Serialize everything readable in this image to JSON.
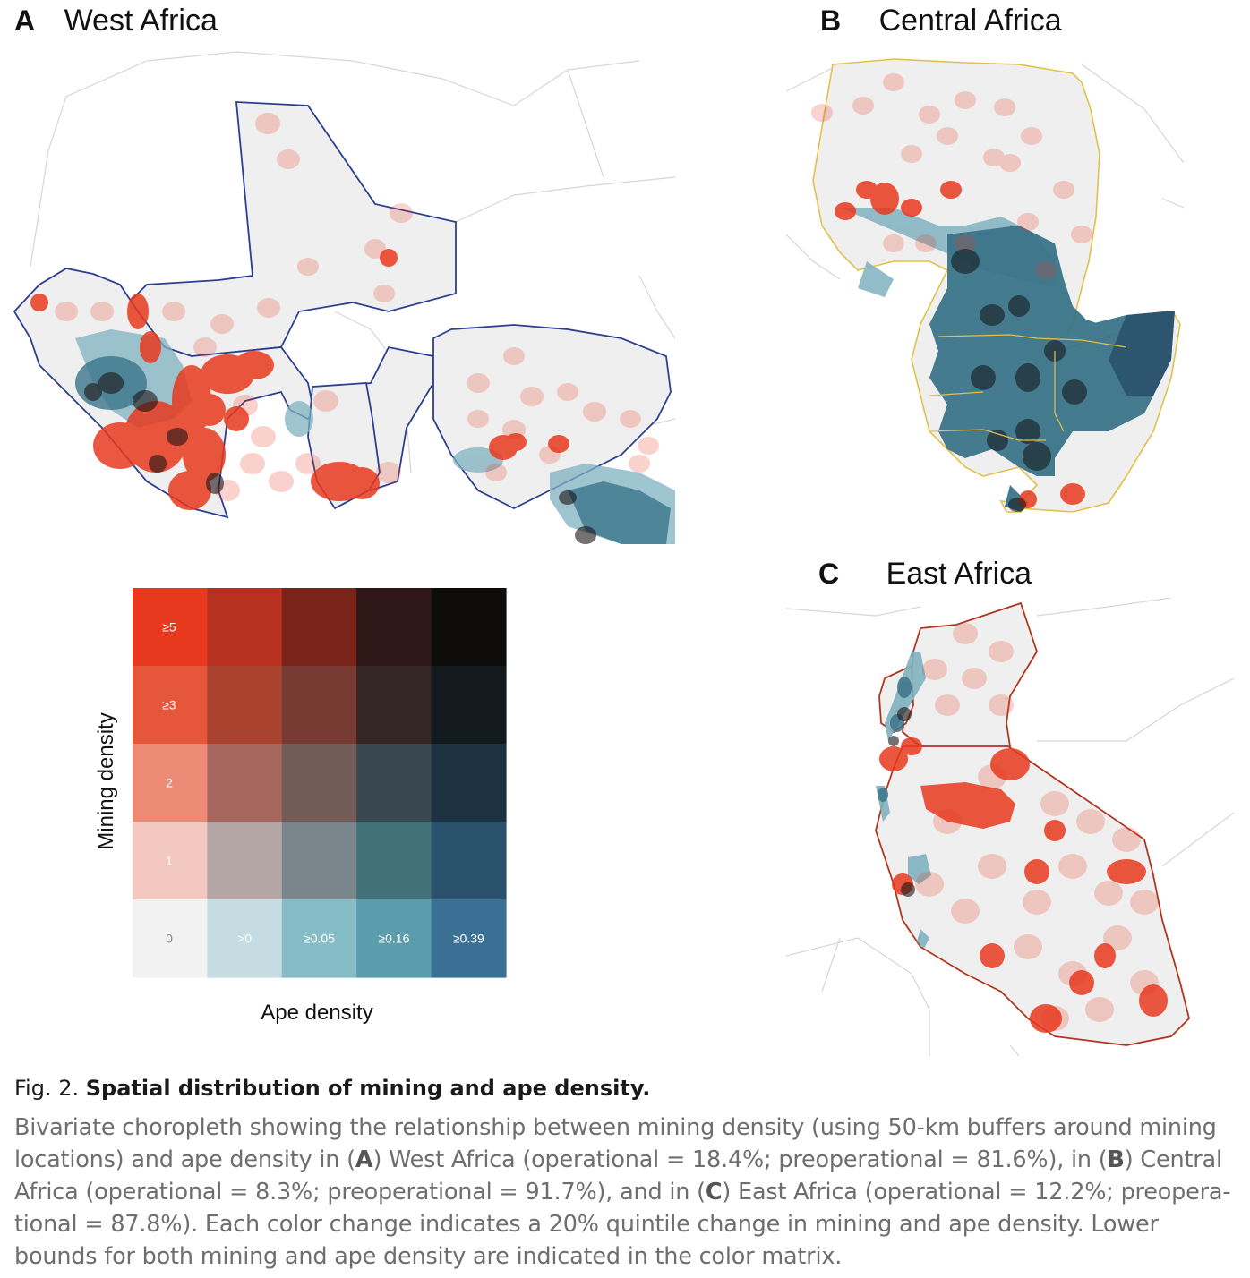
{
  "panels": {
    "a": {
      "letter": "A",
      "title": "West Africa"
    },
    "b": {
      "letter": "B",
      "title": "Central Africa"
    },
    "c": {
      "letter": "C",
      "title": "East Africa"
    }
  },
  "legend": {
    "y_title": "Mining density",
    "x_title": "Ape density",
    "mining_levels": [
      "≥5",
      "≥3",
      "2",
      "1",
      "0"
    ],
    "ape_levels": [
      ">0",
      "≥0.05",
      "≥0.16",
      "≥0.39"
    ],
    "colors": [
      [
        "#e8391f",
        "#b8301f",
        "#7a2318",
        "#2e1716",
        "#0f0c0c"
      ],
      [
        "#e5563a",
        "#a9432f",
        "#763a32",
        "#342624",
        "#121a1e"
      ],
      [
        "#ec8a75",
        "#a8675e",
        "#735b57",
        "#39474e",
        "#1d3240"
      ],
      [
        "#f3c8c0",
        "#b4a6a4",
        "#79868b",
        "#43717a",
        "#2a516c"
      ],
      [
        "#f2f2f2",
        "#c5dde2",
        "#86bcc6",
        "#5b9cad",
        "#3a7093"
      ]
    ]
  },
  "caption": {
    "fig_label": "Fig. 2.",
    "title": "Spatial distribution of mining and ape density.",
    "body": [
      "Bivariate choropleth showing the relationship between mining density (using 50-km buffers around mining locations) and ape density in (",
      "A",
      ") West Africa (operational = 18.4%; preoperational = 81.6%), in (",
      "B",
      ") Central Africa (operational = 8.3%; preoperational = 91.7%), and in (",
      "C",
      ") East Africa (operational = 12.2%; preopera-tional = 87.8%). Each color change indicates a 20% quintile change in mining and ape density. Lower bounds for both mining and ape density are indicated in the color matrix."
    ]
  }
}
